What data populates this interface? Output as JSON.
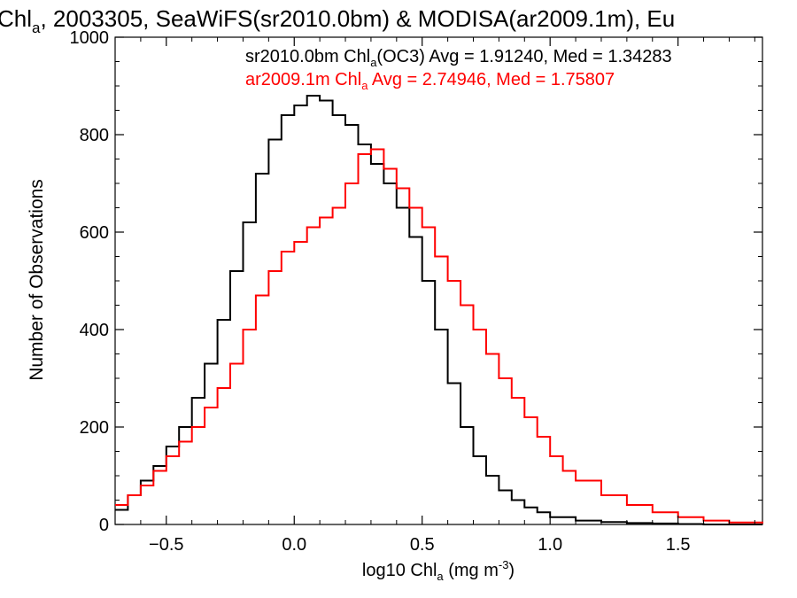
{
  "chart_data": {
    "type": "line",
    "title": {
      "prefix": "Chl",
      "sub": "a",
      "rest": ", 2003305, SeaWiFS(sr2010.0bm) & MODISA(ar2009.1m), Eu"
    },
    "xlabel": {
      "prefix": "log10 Chl",
      "sub": "a",
      "mid": " (mg m",
      "sup": "-3",
      "end": ")"
    },
    "ylabel": "Number of Observations",
    "xlim": [
      -0.7,
      1.83
    ],
    "ylim": [
      0,
      1000
    ],
    "xticks": [
      -0.5,
      0.0,
      0.5,
      1.0,
      1.5
    ],
    "xtick_labels": [
      "−0.5",
      "0.0",
      "0.5",
      "1.0",
      "1.5"
    ],
    "yticks": [
      0,
      200,
      400,
      600,
      800,
      1000
    ],
    "ytick_labels": [
      "0",
      "200",
      "400",
      "600",
      "800",
      "1000"
    ],
    "annotations": [
      {
        "color": "#000000",
        "pre": "sr2010.0bm Chl",
        "sub": "a",
        "post": "(OC3) Avg = 1.91240, Med = 1.34283"
      },
      {
        "color": "#ff0000",
        "pre": "ar2009.1m Chl",
        "sub": "a",
        "post": " Avg = 2.74946, Med = 1.75807"
      }
    ],
    "series": [
      {
        "color": "#000000",
        "x": [
          -0.7,
          -0.65,
          -0.6,
          -0.55,
          -0.5,
          -0.45,
          -0.4,
          -0.35,
          -0.3,
          -0.25,
          -0.2,
          -0.15,
          -0.1,
          -0.05,
          0.0,
          0.05,
          0.1,
          0.15,
          0.2,
          0.25,
          0.3,
          0.35,
          0.4,
          0.45,
          0.5,
          0.55,
          0.6,
          0.65,
          0.7,
          0.75,
          0.8,
          0.85,
          0.9,
          0.95,
          1.0,
          1.1,
          1.2,
          1.3,
          1.4,
          1.5,
          1.6,
          1.83
        ],
        "y": [
          30,
          60,
          90,
          120,
          160,
          200,
          260,
          330,
          420,
          520,
          620,
          720,
          790,
          840,
          860,
          880,
          870,
          840,
          820,
          780,
          740,
          700,
          650,
          590,
          500,
          400,
          290,
          200,
          140,
          100,
          70,
          50,
          35,
          25,
          15,
          8,
          5,
          3,
          2,
          1,
          0,
          0
        ]
      },
      {
        "color": "#ff0000",
        "x": [
          -0.7,
          -0.65,
          -0.6,
          -0.55,
          -0.5,
          -0.45,
          -0.4,
          -0.35,
          -0.3,
          -0.25,
          -0.2,
          -0.15,
          -0.1,
          -0.05,
          0.0,
          0.05,
          0.1,
          0.15,
          0.2,
          0.25,
          0.3,
          0.35,
          0.4,
          0.45,
          0.5,
          0.55,
          0.6,
          0.65,
          0.7,
          0.75,
          0.8,
          0.85,
          0.9,
          0.95,
          1.0,
          1.05,
          1.1,
          1.2,
          1.3,
          1.4,
          1.5,
          1.6,
          1.7,
          1.83
        ],
        "y": [
          40,
          60,
          80,
          110,
          140,
          170,
          200,
          240,
          280,
          330,
          400,
          470,
          520,
          560,
          580,
          610,
          630,
          650,
          700,
          760,
          770,
          730,
          690,
          650,
          610,
          550,
          500,
          450,
          400,
          350,
          300,
          260,
          220,
          180,
          140,
          110,
          90,
          60,
          40,
          25,
          15,
          8,
          4,
          2
        ]
      }
    ]
  }
}
